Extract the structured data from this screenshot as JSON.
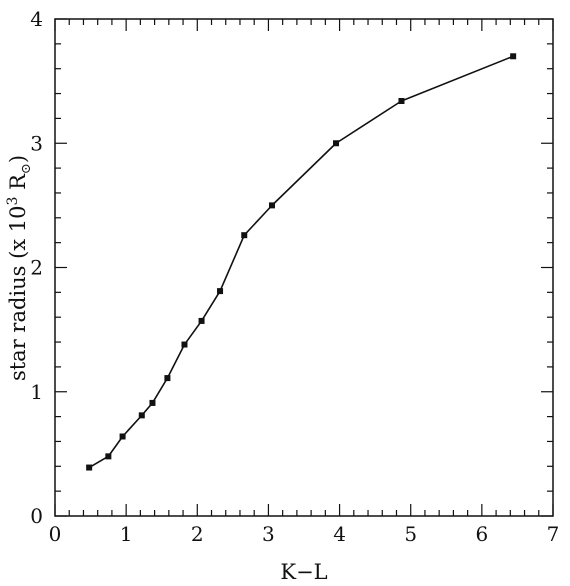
{
  "chart_data": {
    "type": "line",
    "title": "",
    "xlabel": "K−L",
    "ylabel_parts": {
      "prefix": "star radius (x 10",
      "exponent": "3",
      "unit": " R",
      "subscript": "⊙",
      "suffix": ")"
    },
    "xlim": [
      0,
      7
    ],
    "ylim": [
      0,
      4
    ],
    "xticks": [
      0,
      1,
      2,
      3,
      4,
      5,
      6,
      7
    ],
    "xtick_labels": [
      "0",
      "1",
      "2",
      "3",
      "4",
      "5",
      "6",
      "7"
    ],
    "yticks": [
      0,
      1,
      2,
      3,
      4
    ],
    "ytick_labels": [
      "0",
      "1",
      "2",
      "3",
      "4"
    ],
    "x_minor_step": 0.2,
    "y_minor_step": 0.2,
    "grid": false,
    "marker": "square",
    "color": "#111111",
    "series": [
      {
        "x": [
          0.48,
          0.75,
          0.95,
          1.22,
          1.37,
          1.58,
          1.82,
          2.06,
          2.32,
          2.66,
          3.05,
          3.95,
          4.87,
          6.44
        ],
        "y": [
          0.39,
          0.48,
          0.64,
          0.81,
          0.91,
          1.11,
          1.38,
          1.57,
          1.81,
          2.26,
          2.5,
          3.0,
          3.34,
          3.7
        ]
      }
    ]
  }
}
